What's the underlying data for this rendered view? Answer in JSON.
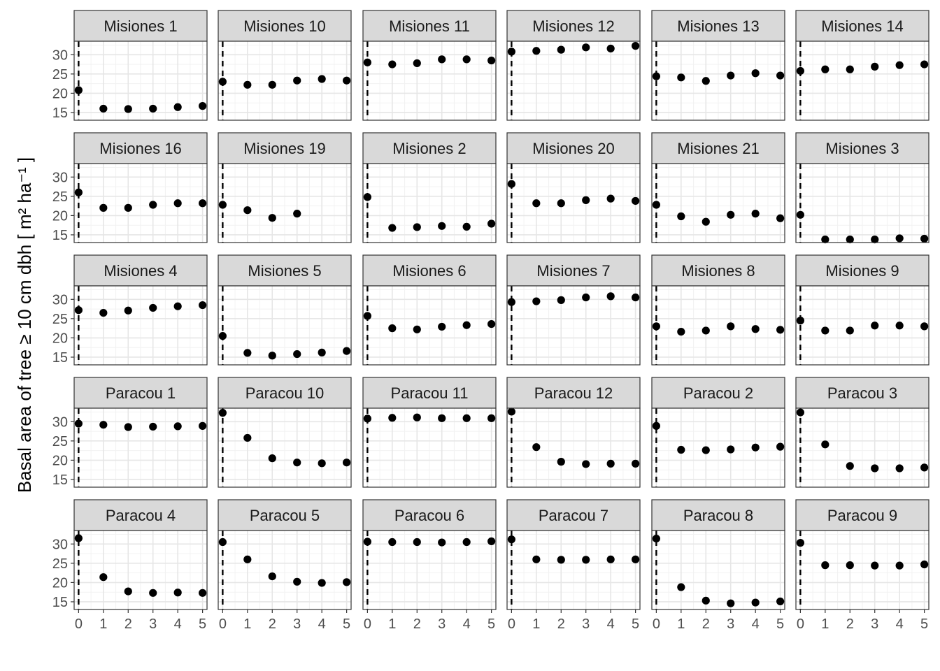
{
  "chart_data": {
    "type": "scatter",
    "layout": "facet-grid",
    "ylabel": "Basal area of tree  ≥ 10 cm dbh [ m² ha⁻¹ ]",
    "xlabel": "",
    "x_ticks": [
      0,
      1,
      2,
      3,
      4,
      5
    ],
    "y_ticks": [
      15,
      20,
      25,
      30
    ],
    "xlim": [
      -0.18,
      5.18
    ],
    "ylim": [
      13,
      33.5
    ],
    "reference_line_x": 0,
    "grid": true,
    "point_color": "#000000",
    "strip_color": "#d9d9d9",
    "facets": [
      {
        "name": "Misiones 1",
        "x": [
          0,
          1,
          2,
          3,
          4,
          5
        ],
        "y": [
          20.8,
          16.0,
          15.9,
          16.0,
          16.4,
          16.7
        ]
      },
      {
        "name": "Misiones 10",
        "x": [
          0,
          1,
          2,
          3,
          4,
          5
        ],
        "y": [
          23.0,
          22.2,
          22.2,
          23.3,
          23.7,
          23.3
        ]
      },
      {
        "name": "Misiones 11",
        "x": [
          0,
          1,
          2,
          3,
          4,
          5
        ],
        "y": [
          28.0,
          27.5,
          27.8,
          28.8,
          28.8,
          28.5
        ]
      },
      {
        "name": "Misiones 12",
        "x": [
          0,
          1,
          2,
          3,
          4,
          5
        ],
        "y": [
          30.8,
          31.0,
          31.3,
          31.9,
          31.6,
          32.3
        ]
      },
      {
        "name": "Misiones 13",
        "x": [
          0,
          1,
          2,
          3,
          4,
          5
        ],
        "y": [
          24.4,
          24.1,
          23.2,
          24.6,
          25.2,
          24.6
        ]
      },
      {
        "name": "Misiones 14",
        "x": [
          0,
          1,
          2,
          3,
          4,
          5
        ],
        "y": [
          25.8,
          26.2,
          26.2,
          26.9,
          27.3,
          27.5
        ]
      },
      {
        "name": "Misiones 16",
        "x": [
          0,
          1,
          2,
          3,
          4,
          5
        ],
        "y": [
          26.0,
          22.0,
          22.0,
          22.8,
          23.2,
          23.2
        ]
      },
      {
        "name": "Misiones 19",
        "x": [
          0,
          1,
          2,
          3
        ],
        "y": [
          22.8,
          21.4,
          19.4,
          20.5
        ]
      },
      {
        "name": "Misiones 2",
        "x": [
          0,
          1,
          2,
          3,
          4,
          5
        ],
        "y": [
          24.8,
          16.8,
          17.0,
          17.3,
          17.1,
          17.9
        ]
      },
      {
        "name": "Misiones 20",
        "x": [
          0,
          1,
          2,
          3,
          4,
          5
        ],
        "y": [
          28.2,
          23.2,
          23.2,
          24.0,
          24.4,
          23.8
        ]
      },
      {
        "name": "Misiones 21",
        "x": [
          0,
          1,
          2,
          3,
          4,
          5
        ],
        "y": [
          22.8,
          19.8,
          18.4,
          20.2,
          20.5,
          19.3
        ]
      },
      {
        "name": "Misiones 3",
        "x": [
          0,
          1,
          2,
          3,
          4,
          5
        ],
        "y": [
          20.2,
          13.8,
          13.8,
          13.8,
          14.1,
          14.0
        ]
      },
      {
        "name": "Misiones 4",
        "x": [
          0,
          1,
          2,
          3,
          4,
          5
        ],
        "y": [
          27.2,
          26.5,
          27.1,
          27.8,
          28.2,
          28.5
        ]
      },
      {
        "name": "Misiones 5",
        "x": [
          0,
          1,
          2,
          3,
          4,
          5
        ],
        "y": [
          20.5,
          16.1,
          15.4,
          15.8,
          16.2,
          16.6
        ]
      },
      {
        "name": "Misiones 6",
        "x": [
          0,
          1,
          2,
          3,
          4,
          5
        ],
        "y": [
          25.7,
          22.5,
          22.2,
          22.9,
          23.3,
          23.6
        ]
      },
      {
        "name": "Misiones 7",
        "x": [
          0,
          1,
          2,
          3,
          4,
          5
        ],
        "y": [
          29.3,
          29.5,
          29.8,
          30.5,
          30.8,
          30.5
        ]
      },
      {
        "name": "Misiones 8",
        "x": [
          0,
          1,
          2,
          3,
          4,
          5
        ],
        "y": [
          23.0,
          21.6,
          21.9,
          23.0,
          22.3,
          22.1
        ]
      },
      {
        "name": "Misiones 9",
        "x": [
          0,
          1,
          2,
          3,
          4,
          5
        ],
        "y": [
          24.5,
          21.9,
          21.9,
          23.2,
          23.2,
          23.0
        ]
      },
      {
        "name": "Paracou 1",
        "x": [
          0,
          1,
          2,
          3,
          4,
          5
        ],
        "y": [
          29.5,
          29.2,
          28.6,
          28.7,
          28.8,
          28.9
        ]
      },
      {
        "name": "Paracou 10",
        "x": [
          0,
          1,
          2,
          3,
          4,
          5
        ],
        "y": [
          32.3,
          25.8,
          20.5,
          19.4,
          19.2,
          19.4
        ]
      },
      {
        "name": "Paracou 11",
        "x": [
          0,
          1,
          2,
          3,
          4,
          5
        ],
        "y": [
          30.8,
          31.0,
          31.1,
          30.9,
          30.9,
          30.9
        ]
      },
      {
        "name": "Paracou 12",
        "x": [
          0,
          1,
          2,
          3,
          4,
          5
        ],
        "y": [
          32.6,
          23.4,
          19.6,
          19.0,
          19.1,
          19.1
        ]
      },
      {
        "name": "Paracou 2",
        "x": [
          0,
          1,
          2,
          3,
          4,
          5
        ],
        "y": [
          28.9,
          22.7,
          22.6,
          22.8,
          23.3,
          23.5
        ]
      },
      {
        "name": "Paracou 3",
        "x": [
          0,
          1,
          2,
          3,
          4,
          5
        ],
        "y": [
          32.4,
          24.1,
          18.5,
          17.9,
          17.9,
          18.1
        ]
      },
      {
        "name": "Paracou 4",
        "x": [
          0,
          1,
          2,
          3,
          4,
          5
        ],
        "y": [
          31.5,
          21.4,
          17.7,
          17.3,
          17.4,
          17.3
        ]
      },
      {
        "name": "Paracou 5",
        "x": [
          0,
          1,
          2,
          3,
          4,
          5
        ],
        "y": [
          30.5,
          26.0,
          21.6,
          20.2,
          19.9,
          20.1
        ]
      },
      {
        "name": "Paracou 6",
        "x": [
          0,
          1,
          2,
          3,
          4,
          5
        ],
        "y": [
          30.6,
          30.5,
          30.5,
          30.4,
          30.5,
          30.7
        ]
      },
      {
        "name": "Paracou 7",
        "x": [
          0,
          1,
          2,
          3,
          4,
          5
        ],
        "y": [
          31.2,
          26.0,
          25.9,
          25.9,
          26.0,
          26.0
        ]
      },
      {
        "name": "Paracou 8",
        "x": [
          0,
          1,
          2,
          3,
          4,
          5
        ],
        "y": [
          31.4,
          18.8,
          15.3,
          14.6,
          14.8,
          15.1
        ]
      },
      {
        "name": "Paracou 9",
        "x": [
          0,
          1,
          2,
          3,
          4,
          5
        ],
        "y": [
          30.3,
          24.5,
          24.5,
          24.4,
          24.4,
          24.7
        ]
      }
    ]
  }
}
